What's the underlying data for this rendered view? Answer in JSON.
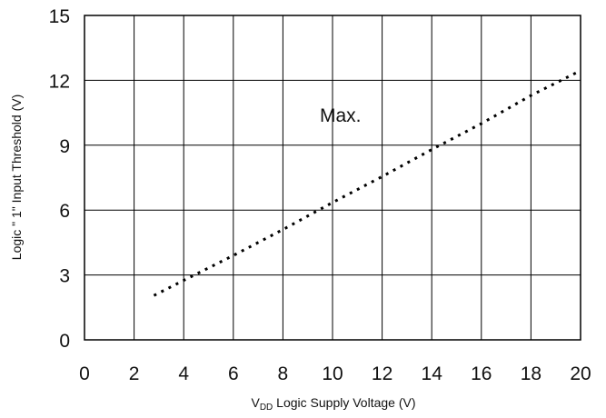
{
  "chart_data": {
    "type": "line",
    "title": "",
    "xlabel_main": "V",
    "xlabel_sub": "DD",
    "xlabel_rest": " Logic Supply Voltage (V)",
    "ylabel": "Logic \" 1\" Input Threshold (V)",
    "xlim": [
      0,
      20
    ],
    "ylim": [
      0,
      15
    ],
    "x_ticks": [
      "0",
      "2",
      "4",
      "6",
      "8",
      "10",
      "12",
      "14",
      "16",
      "18",
      "20"
    ],
    "y_ticks": [
      "0",
      "3",
      "6",
      "9",
      "12",
      "15"
    ],
    "grid": true,
    "line_style": "dotted",
    "annotation": "Max.",
    "series": [
      {
        "x": [
          2.8,
          4,
          6,
          8,
          10,
          12,
          14,
          16,
          18,
          20
        ],
        "y": [
          2.05,
          2.75,
          3.9,
          5.1,
          6.35,
          7.55,
          8.8,
          10.0,
          11.3,
          12.45
        ]
      }
    ]
  }
}
